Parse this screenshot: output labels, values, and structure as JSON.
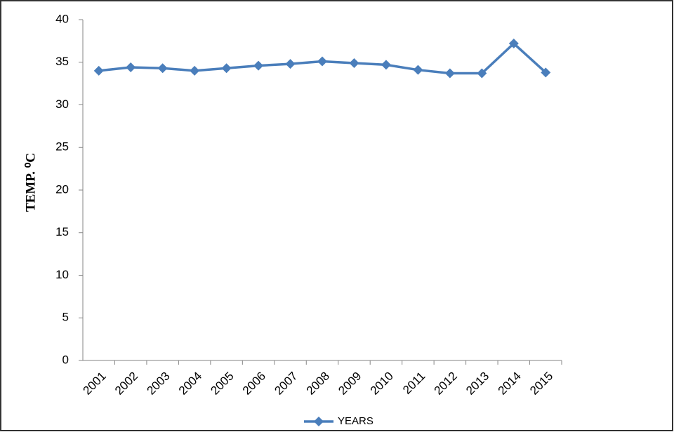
{
  "chart_data": {
    "type": "line",
    "categories": [
      "2001",
      "2002",
      "2003",
      "2004",
      "2005",
      "2006",
      "2007",
      "2008",
      "2009",
      "2010",
      "2011",
      "2012",
      "2013",
      "2014",
      "2015"
    ],
    "series": [
      {
        "name": "YEARS",
        "color": "#4a7ebb",
        "values": [
          34.0,
          34.4,
          34.3,
          34.0,
          34.3,
          34.6,
          34.8,
          35.1,
          34.9,
          34.7,
          34.1,
          33.7,
          33.7,
          37.2,
          33.8
        ]
      }
    ],
    "y_label": "TEMP. ⁰C",
    "ylim": [
      0,
      40
    ],
    "yticks": [
      0,
      5,
      10,
      15,
      20,
      25,
      30,
      35,
      40
    ],
    "grid": false,
    "legend": "bottom"
  }
}
